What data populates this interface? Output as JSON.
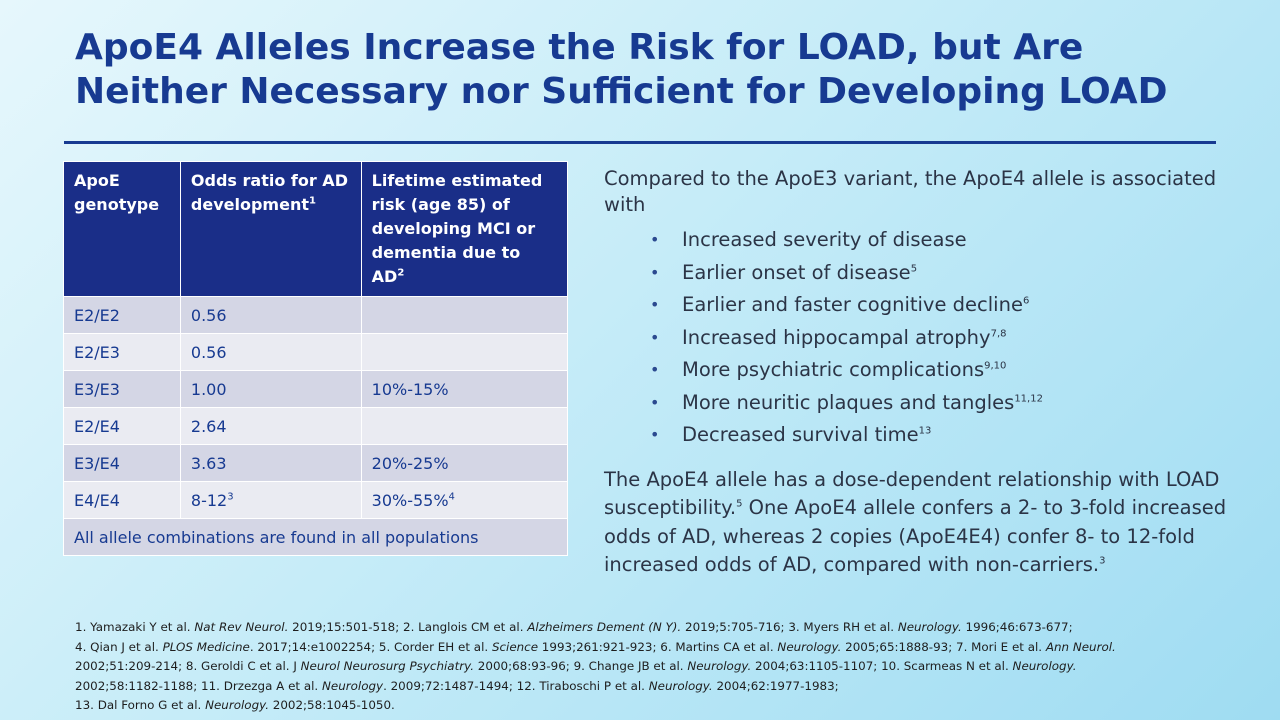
{
  "title": {
    "line1": "ApoE4 Alleles Increase the Risk for LOAD, but Are",
    "line2": "Neither Necessary nor Sufficient for Developing LOAD"
  },
  "table": {
    "header": {
      "col1": "ApoE genotype",
      "col2": "Odds ratio for AD development",
      "col2_sup": "1",
      "col3": "Lifetime estimated risk (age 85) of developing MCI or dementia due to AD",
      "col3_sup": "2"
    },
    "rows": [
      {
        "genotype": "E2/E2",
        "odds": "0.56",
        "odds_sup": "",
        "risk": "",
        "risk_sup": ""
      },
      {
        "genotype": "E2/E3",
        "odds": "0.56",
        "odds_sup": "",
        "risk": "",
        "risk_sup": ""
      },
      {
        "genotype": "E3/E3",
        "odds": "1.00",
        "odds_sup": "",
        "risk": "10%-15%",
        "risk_sup": ""
      },
      {
        "genotype": "E2/E4",
        "odds": "2.64",
        "odds_sup": "",
        "risk": "",
        "risk_sup": ""
      },
      {
        "genotype": "E3/E4",
        "odds": "3.63",
        "odds_sup": "",
        "risk": "20%-25%",
        "risk_sup": ""
      },
      {
        "genotype": "E4/E4",
        "odds": "8-12",
        "odds_sup": "3",
        "risk": "30%-55%",
        "risk_sup": "4"
      }
    ],
    "footer": "All allele combinations are found in all populations"
  },
  "right": {
    "intro": "Compared to the ApoE3 variant, the ApoE4 allele is associated with",
    "bullets": [
      {
        "text": "Increased severity of disease",
        "sup": ""
      },
      {
        "text": "Earlier onset of disease",
        "sup": "5"
      },
      {
        "text": "Earlier and faster cognitive decline",
        "sup": "6"
      },
      {
        "text": "Increased hippocampal atrophy",
        "sup": "7,8"
      },
      {
        "text": "More psychiatric complications",
        "sup": "9,10"
      },
      {
        "text": "More neuritic plaques and tangles",
        "sup": "11,12"
      },
      {
        "text": "Decreased survival time",
        "sup": "13"
      }
    ],
    "para_a": "The ApoE4 allele has a dose-dependent relationship with LOAD susceptibility.",
    "para_a_sup": "5",
    "para_b": " One ApoE4 allele confers a 2- to 3-fold increased odds of AD, whereas 2 copies (ApoE4E4) confer 8- to 12-fold increased odds of AD, compared with non-carriers.",
    "para_b_sup": "3"
  },
  "references": {
    "r1a": "1. Yamazaki Y et al. ",
    "r1j": "Nat Rev Neurol.",
    "r1b": " 2019;15:501-518;  ",
    "r2a": "2. Langlois CM et al. ",
    "r2j": "Alzheimers Dement (N Y).",
    "r2b": " 2019;5:705-716;  ",
    "r3a": "3. Myers RH et al. ",
    "r3j": "Neurology.",
    "r3b": " 1996;46:673-677;",
    "r4a": "4. Qian J et al. ",
    "r4j": "PLOS Medicine",
    "r4b": ". 2017;14:e1002254;  ",
    "r5a": "5. Corder EH et al. ",
    "r5j": "Science",
    "r5b": " 1993;261:921-923;  ",
    "r6a": "6. Martins CA et al. ",
    "r6j": "Neurology.",
    "r6b": " 2005;65:1888-93;  ",
    "r7a": "7. Mori E et al. ",
    "r7j": "Ann Neurol.",
    "r7b": " 2002;51:209-214;  ",
    "r8a": "8. Geroldi C et al. J ",
    "r8j": "Neurol Neurosurg Psychiatry.",
    "r8b": " 2000;68:93-96;  ",
    "r9a": "9. Change JB et al. ",
    "r9j": "Neurology.",
    "r9b": " 2004;63:1105-1107;  ",
    "r10a": "10. Scarmeas N et al. ",
    "r10j": "Neurology.",
    "r10b": " 2002;58:1182-1188;  ",
    "r11a": "11. Drzezga A et al. ",
    "r11j": "Neurology",
    "r11b": ". 2009;72:1487-1494;  ",
    "r12a": "12. Tiraboschi P et al. ",
    "r12j": "Neurology.",
    "r12b": " 2004;62:1977-1983;",
    "r13a": "13. Dal Forno G et al. ",
    "r13j": "Neurology.",
    "r13b": " 2002;58:1045-1050."
  }
}
